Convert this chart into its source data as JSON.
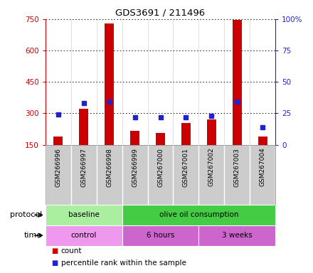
{
  "title": "GDS3691 / 211496",
  "samples": [
    "GSM266996",
    "GSM266997",
    "GSM266998",
    "GSM266999",
    "GSM267000",
    "GSM267001",
    "GSM267002",
    "GSM267003",
    "GSM267004"
  ],
  "count_values": [
    190,
    320,
    730,
    215,
    205,
    255,
    270,
    745,
    190
  ],
  "percentile_values": [
    24,
    33,
    34,
    22,
    22,
    22,
    23,
    34,
    14
  ],
  "ylim_left": [
    150,
    750
  ],
  "ylim_right": [
    0,
    100
  ],
  "yticks_left": [
    150,
    300,
    450,
    600,
    750
  ],
  "yticks_right": [
    0,
    25,
    50,
    75,
    100
  ],
  "bar_color": "#cc0000",
  "dot_color": "#2222cc",
  "bar_width": 0.35,
  "protocol_groups": [
    {
      "label": "baseline",
      "start": 0,
      "end": 3,
      "color": "#aaeea0"
    },
    {
      "label": "olive oil consumption",
      "start": 3,
      "end": 9,
      "color": "#44cc44"
    }
  ],
  "time_groups": [
    {
      "label": "control",
      "start": 0,
      "end": 3,
      "color": "#ee99ee"
    },
    {
      "label": "6 hours",
      "start": 3,
      "end": 6,
      "color": "#cc66cc"
    },
    {
      "label": "3 weeks",
      "start": 6,
      "end": 9,
      "color": "#cc66cc"
    }
  ],
  "legend_count_label": "count",
  "legend_pct_label": "percentile rank within the sample",
  "tick_label_color_left": "#cc0000",
  "tick_label_color_right": "#2222cc",
  "background_color": "#ffffff",
  "sample_bg_color": "#cccccc",
  "grid_color": "#000000"
}
